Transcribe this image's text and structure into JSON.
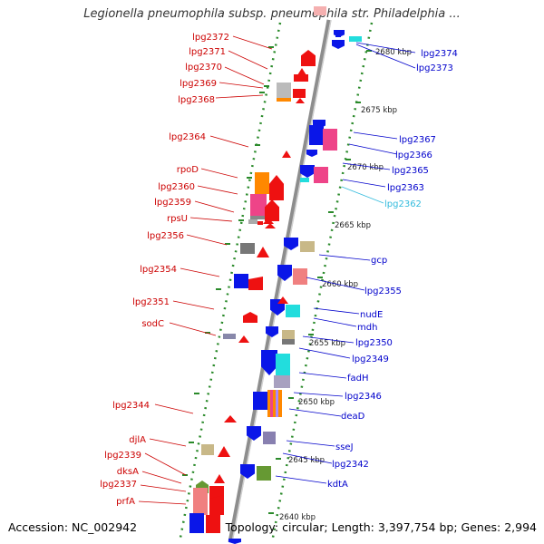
{
  "header": {
    "title": "Legionella pneumophila subsp. pneumophila str. Philadelphia ..."
  },
  "footer": {
    "accession": "Accession: NC_002942",
    "summary": "Topology: circular; Length: 3,397,754 bp; Genes: 2,994"
  },
  "colors": {
    "backbone": "#999999",
    "ruler": "#2a8a2a",
    "left_label": "#cc0000",
    "right_label": "#0000cc",
    "highlight_label": "#33bbdd",
    "gene_red": "#ee1111",
    "gene_blue": "#0a16e8",
    "gene_pink": "#ee4488",
    "gene_salmon": "#f08080",
    "gene_tan": "#c8b888",
    "gene_gray": "#777777",
    "gene_cyan": "#22dddd",
    "gene_orange": "#ff8800",
    "gene_green": "#669933"
  },
  "kbp_labels": [
    "2680 kbp",
    "2675 kbp",
    "2670 kbp",
    "2665 kbp",
    "2660 kbp",
    "2655 kbp",
    "2650 kbp",
    "2645 kbp",
    "2640 kbp"
  ],
  "left_genes": [
    "lpg2372",
    "lpg2371",
    "lpg2370",
    "lpg2369",
    "lpg2368",
    "lpg2364",
    "rpoD",
    "lpg2360",
    "lpg2359",
    "rpsU",
    "lpg2356",
    "lpg2354",
    "lpg2351",
    "sodC",
    "lpg2344",
    "djlA",
    "lpg2339",
    "dksA",
    "lpg2337",
    "prfA"
  ],
  "right_genes": [
    "lpg2374",
    "lpg2373",
    "lpg2367",
    "lpg2366",
    "lpg2365",
    "lpg2363",
    "lpg2362",
    "gcp",
    "lpg2355",
    "nudE",
    "mdh",
    "lpg2350",
    "lpg2349",
    "fadH",
    "lpg2346",
    "deaD",
    "sseJ",
    "lpg2342",
    "kdtA"
  ]
}
